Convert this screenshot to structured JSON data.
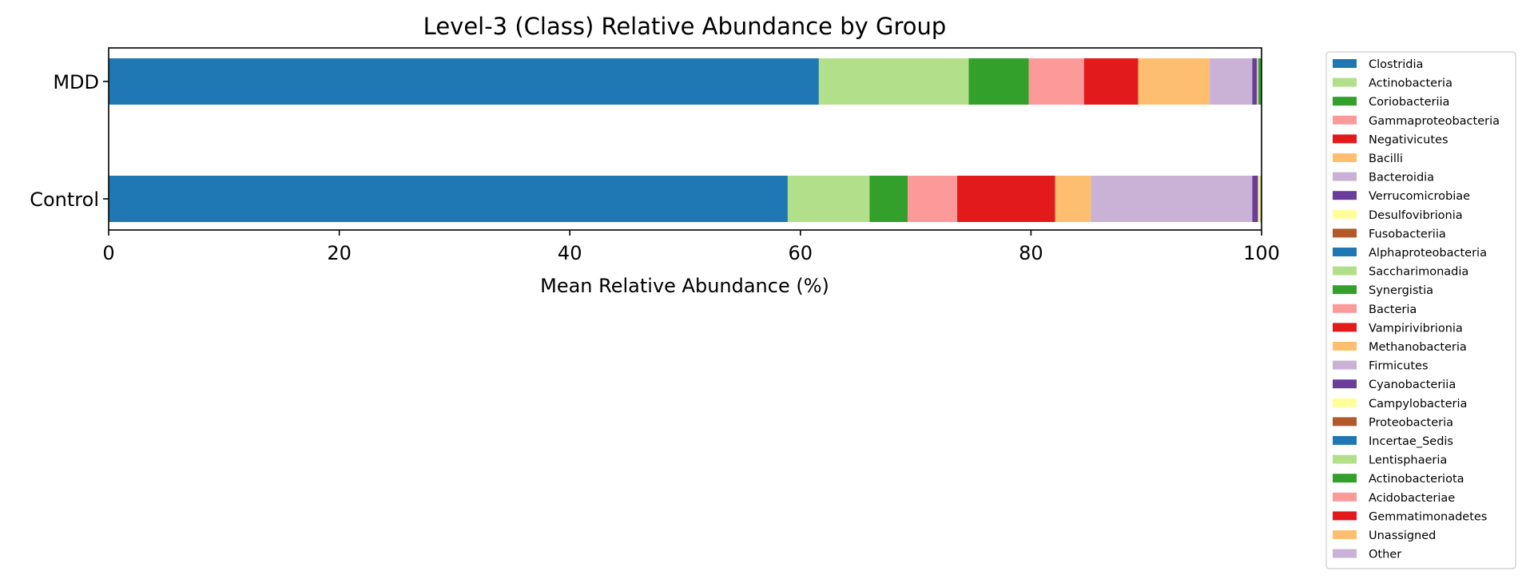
{
  "chart_data": {
    "type": "bar",
    "orientation": "horizontal",
    "stacked": true,
    "title": "Level-3 (Class) Relative Abundance by Group",
    "xlabel": "Mean Relative Abundance (%)",
    "ylabel": "",
    "xlim": [
      0,
      100
    ],
    "xticks": [
      "0",
      "20",
      "40",
      "60",
      "80",
      "100"
    ],
    "categories": [
      "MDD",
      "Control"
    ],
    "grid": false,
    "legend_position": "outside-right",
    "series": [
      {
        "name": "Clostridia",
        "color": "#1f78b4",
        "values": [
          61.6,
          58.9
        ]
      },
      {
        "name": "Actinobacteria",
        "color": "#b2df8a",
        "values": [
          13.0,
          7.1
        ]
      },
      {
        "name": "Coriobacteriia",
        "color": "#33a02c",
        "values": [
          5.2,
          3.3
        ]
      },
      {
        "name": "Gammaproteobacteria",
        "color": "#fb9a99",
        "values": [
          4.8,
          4.3
        ]
      },
      {
        "name": "Negativicutes",
        "color": "#e31a1c",
        "values": [
          4.7,
          8.5
        ]
      },
      {
        "name": "Bacilli",
        "color": "#fdbf6f",
        "values": [
          6.2,
          3.1
        ]
      },
      {
        "name": "Bacteroidia",
        "color": "#cab2d6",
        "values": [
          3.7,
          14.0
        ]
      },
      {
        "name": "Verrucomicrobiae",
        "color": "#6a3d9a",
        "values": [
          0.4,
          0.5
        ]
      },
      {
        "name": "Desulfovibrionia",
        "color": "#ffff99",
        "values": [
          0.05,
          0.2
        ]
      },
      {
        "name": "Fusobacteriia",
        "color": "#b15928",
        "values": [
          0.02,
          0.02
        ]
      },
      {
        "name": "Alphaproteobacteria",
        "color": "#1f78b4",
        "values": [
          0.02,
          0.01
        ]
      },
      {
        "name": "Saccharimonadia",
        "color": "#b2df8a",
        "values": [
          0.05,
          0.02
        ]
      },
      {
        "name": "Synergistia",
        "color": "#33a02c",
        "values": [
          0.2,
          0.02
        ]
      },
      {
        "name": "Bacteria",
        "color": "#fb9a99",
        "values": [
          0.01,
          0.01
        ]
      },
      {
        "name": "Vampirivibrionia",
        "color": "#e31a1c",
        "values": [
          0.01,
          0.01
        ]
      },
      {
        "name": "Methanobacteria",
        "color": "#fdbf6f",
        "values": [
          0.01,
          0.01
        ]
      },
      {
        "name": "Firmicutes",
        "color": "#cab2d6",
        "values": [
          0.01,
          0.0
        ]
      },
      {
        "name": "Cyanobacteriia",
        "color": "#6a3d9a",
        "values": [
          0.0,
          0.0
        ]
      },
      {
        "name": "Campylobacteria",
        "color": "#ffff99",
        "values": [
          0.0,
          0.0
        ]
      },
      {
        "name": "Proteobacteria",
        "color": "#b15928",
        "values": [
          0.0,
          0.0
        ]
      },
      {
        "name": "Incertae_Sedis",
        "color": "#1f78b4",
        "values": [
          0.0,
          0.0
        ]
      },
      {
        "name": "Lentisphaeria",
        "color": "#b2df8a",
        "values": [
          0.0,
          0.0
        ]
      },
      {
        "name": "Actinobacteriota",
        "color": "#33a02c",
        "values": [
          0.0,
          0.0
        ]
      },
      {
        "name": "Acidobacteriae",
        "color": "#fb9a99",
        "values": [
          0.0,
          0.0
        ]
      },
      {
        "name": "Gemmatimonadetes",
        "color": "#e31a1c",
        "values": [
          0.0,
          0.0
        ]
      },
      {
        "name": "Unassigned",
        "color": "#fdbf6f",
        "values": [
          0.0,
          0.0
        ]
      },
      {
        "name": "Other",
        "color": "#cab2d6",
        "values": [
          0.0,
          0.0
        ]
      }
    ]
  }
}
